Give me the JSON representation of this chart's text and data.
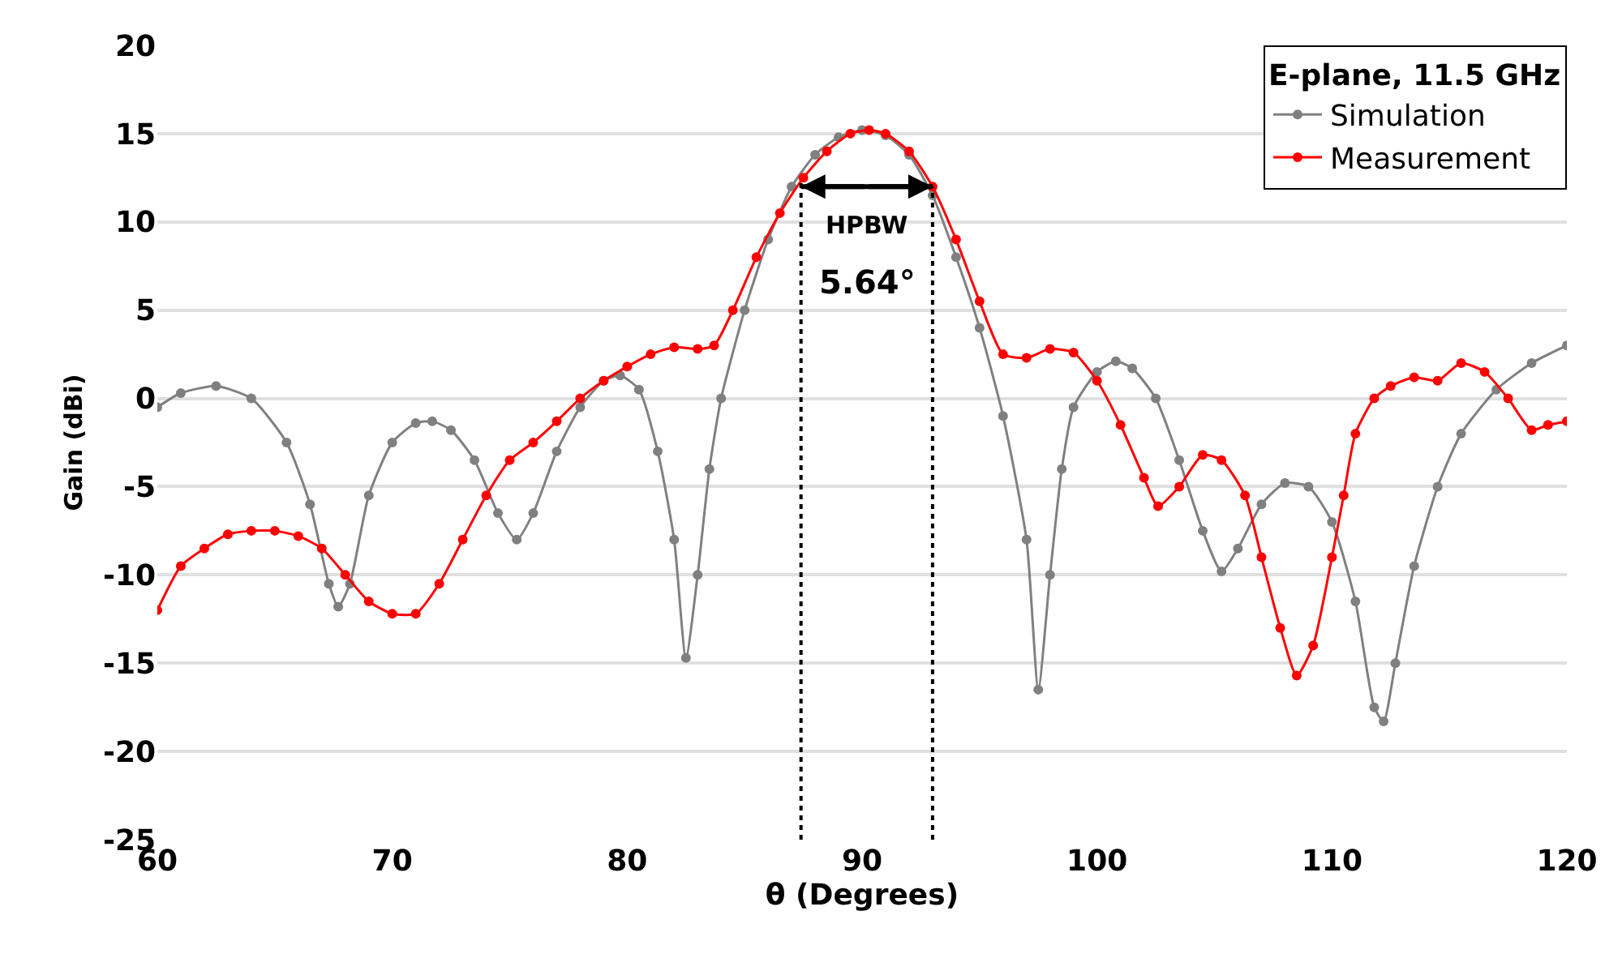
{
  "chart_data": {
    "type": "line",
    "xlabel": "θ (Degrees)",
    "ylabel": "Gain (dBi)",
    "legend_title": "E-plane, 11.5 GHz",
    "xlim": [
      60,
      120
    ],
    "xticks": [
      60,
      70,
      80,
      90,
      100,
      110,
      120
    ],
    "ylim": [
      -25,
      20
    ],
    "yticks": [
      -25,
      -20,
      -15,
      -10,
      -5,
      0,
      5,
      10,
      15,
      20
    ],
    "grid": "y",
    "legend": "top right",
    "marker": "circle",
    "series": [
      {
        "name": "Simulation",
        "color": "#808080",
        "x": [
          60,
          61,
          62.5,
          64,
          65.5,
          66.5,
          67.3,
          67.7,
          68.2,
          69,
          70,
          71,
          71.7,
          72.5,
          73.5,
          74.5,
          75.3,
          76,
          77,
          78,
          79,
          79.7,
          80.5,
          81.3,
          82,
          82.5,
          83,
          83.5,
          84,
          85,
          86,
          87,
          88,
          89,
          90,
          91,
          92,
          93,
          94,
          95,
          96,
          97,
          97.5,
          98,
          98.5,
          99,
          100,
          100.8,
          101.5,
          102.5,
          103.5,
          104.5,
          105.3,
          106,
          107,
          108,
          109,
          110,
          111,
          111.8,
          112.2,
          112.7,
          113.5,
          114.5,
          115.5,
          117,
          118.5,
          120
        ],
        "values": [
          -0.5,
          0.3,
          0.7,
          0,
          -2.5,
          -6,
          -10.5,
          -11.8,
          -10.5,
          -5.5,
          -2.5,
          -1.4,
          -1.3,
          -1.8,
          -3.5,
          -6.5,
          -8,
          -6.5,
          -3,
          -0.5,
          1,
          1.3,
          0.5,
          -3,
          -8,
          -14.7,
          -10,
          -4,
          0,
          5,
          9,
          12,
          13.8,
          14.8,
          15.2,
          14.9,
          13.8,
          11.5,
          8,
          4,
          -1,
          -8,
          -16.5,
          -10,
          -4,
          -0.5,
          1.5,
          2.1,
          1.7,
          0,
          -3.5,
          -7.5,
          -9.8,
          -8.5,
          -6,
          -4.8,
          -5,
          -7,
          -11.5,
          -17.5,
          -18.3,
          -15,
          -9.5,
          -5,
          -2,
          0.5,
          2,
          3
        ]
      },
      {
        "name": "Measurement",
        "color": "#ff0000",
        "x": [
          60,
          61,
          62,
          63,
          64,
          65,
          66,
          67,
          68,
          69,
          70,
          71,
          72,
          73,
          74,
          75,
          76,
          77,
          78,
          79,
          80,
          81,
          82,
          83,
          83.7,
          84.5,
          85.5,
          86.5,
          87.5,
          88.5,
          89.5,
          90.3,
          91,
          92,
          93,
          94,
          95,
          96,
          97,
          98,
          99,
          100,
          101,
          102,
          102.6,
          103.5,
          104.5,
          105.3,
          106.3,
          107,
          107.8,
          108.5,
          109.2,
          110,
          110.5,
          111,
          111.8,
          112.5,
          113.5,
          114.5,
          115.5,
          116.5,
          117.5,
          118.5,
          119.2,
          120
        ],
        "values": [
          -12,
          -9.5,
          -8.5,
          -7.7,
          -7.5,
          -7.5,
          -7.8,
          -8.5,
          -10,
          -11.5,
          -12.2,
          -12.2,
          -10.5,
          -8,
          -5.5,
          -3.5,
          -2.5,
          -1.3,
          0,
          1,
          1.8,
          2.5,
          2.9,
          2.8,
          3,
          5,
          8,
          10.5,
          12.5,
          14,
          15,
          15.2,
          15,
          14,
          12,
          9,
          5.5,
          2.5,
          2.3,
          2.8,
          2.6,
          1,
          -1.5,
          -4.5,
          -6.1,
          -5,
          -3.2,
          -3.5,
          -5.5,
          -9,
          -13,
          -15.7,
          -14,
          -9,
          -5.5,
          -2,
          0,
          0.7,
          1.2,
          1,
          2,
          1.5,
          0,
          -1.8,
          -1.5,
          -1.3
        ]
      }
    ],
    "ref_lines": [
      {
        "axis": "x",
        "value": 87.4,
        "color": "#000000",
        "line_style": "dotted"
      },
      {
        "axis": "x",
        "value": 93.0,
        "color": "#000000",
        "line_style": "dotted"
      }
    ],
    "annotations": [
      "HPBW",
      "5.64°"
    ]
  }
}
